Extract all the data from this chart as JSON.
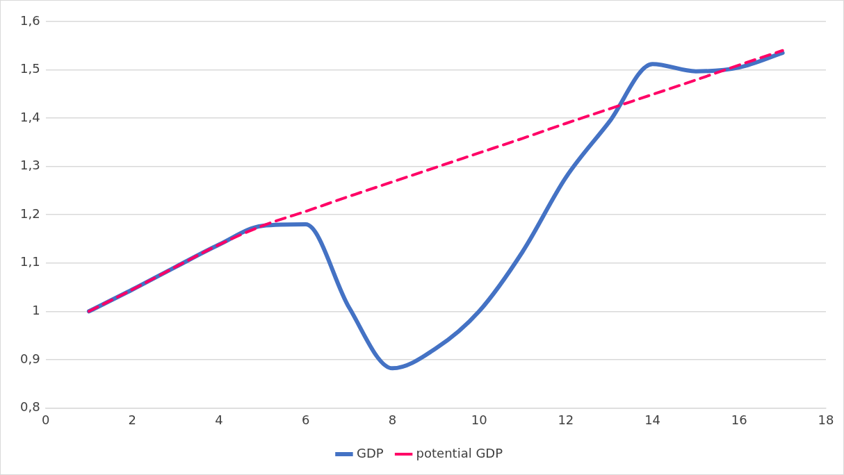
{
  "chart_data": {
    "type": "line",
    "x": [
      1,
      2,
      3,
      4,
      5,
      6,
      7,
      8,
      9,
      10,
      11,
      12,
      13,
      14,
      15,
      16,
      17
    ],
    "series": [
      {
        "name": "GDP",
        "color": "#4472c4",
        "line_style": "solid",
        "values": [
          1.0,
          1.045,
          1.092,
          1.138,
          1.177,
          1.18,
          1.008,
          0.882,
          0.923,
          1.0,
          1.123,
          1.277,
          1.392,
          1.512,
          1.497,
          1.505,
          1.535
        ]
      },
      {
        "name": "potential GDP",
        "color": "#ff0066",
        "line_style": "dashed",
        "values": [
          1.0,
          1.045,
          1.092,
          1.138,
          1.177,
          1.207,
          1.238,
          1.268,
          1.298,
          1.328,
          1.358,
          1.389,
          1.419,
          1.449,
          1.479,
          1.51,
          1.54
        ]
      }
    ],
    "xlim": [
      0,
      18
    ],
    "xticks": [
      0,
      2,
      4,
      6,
      8,
      10,
      12,
      14,
      16,
      18
    ],
    "ylim": [
      0.8,
      1.6
    ],
    "yticks": [
      {
        "value": 0.8,
        "label": "0,8"
      },
      {
        "value": 0.9,
        "label": "0,9"
      },
      1,
      {
        "value": 1.1,
        "label": "1,1"
      },
      {
        "value": 1.2,
        "label": "1,2"
      },
      {
        "value": 1.3,
        "label": "1,3"
      },
      {
        "value": 1.4,
        "label": "1,4"
      },
      {
        "value": 1.5,
        "label": "1,5"
      },
      {
        "value": 1.6,
        "label": "1,6"
      }
    ],
    "grid": "y",
    "legend": "bottom",
    "marker": "none"
  }
}
